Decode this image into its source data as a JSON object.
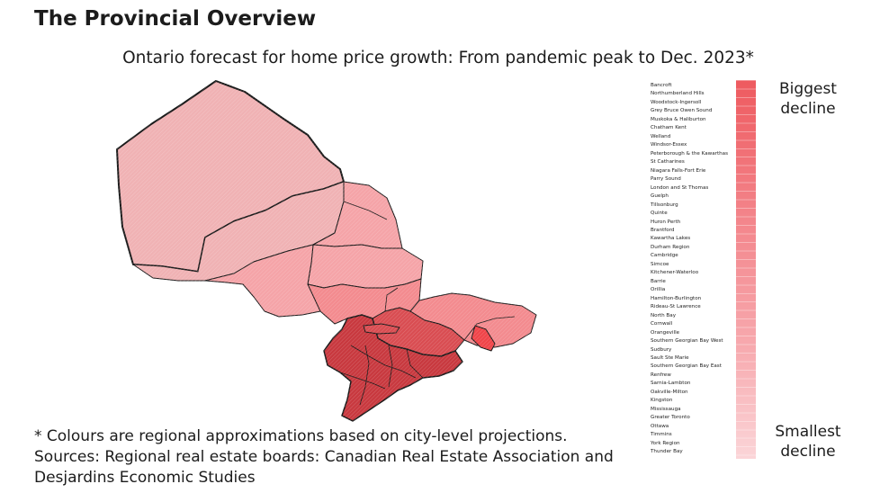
{
  "header": {
    "title": "The Provincial Overview",
    "subtitle": "Ontario forecast for home price growth: From pandemic peak to Dec. 2023*"
  },
  "legend": {
    "top_label": "Biggest decline",
    "bottom_label": "Smallest decline",
    "color_high": "#ee5a5f",
    "color_low": "#fbd5d8",
    "regions": [
      "Bancroft",
      "Northumberland Hills",
      "Woodstock-Ingersoll",
      "Grey Bruce Owen Sound",
      "Muskoka & Haliburton",
      "Chatham Kent",
      "Welland",
      "Windsor-Essex",
      "Peterborough & the Kawarthas",
      "St Catharines",
      "Niagara Falls-Fort Erie",
      "Parry Sound",
      "London and St Thomas",
      "Guelph",
      "Tillsonburg",
      "Quinte",
      "Huron Perth",
      "Brantford",
      "Kawartha Lakes",
      "Durham Region",
      "Cambridge",
      "Simcoe",
      "Kitchener-Waterloo",
      "Barrie",
      "Orillia",
      "Hamilton-Burlington",
      "Rideau-St Lawrence",
      "North Bay",
      "Cornwall",
      "Orangeville",
      "Southern Georgian Bay West",
      "Sudbury",
      "Sault Ste Marie",
      "Southern Georgian Bay East",
      "Renfrew",
      "Sarnia-Lambton",
      "Oakville-Milton",
      "Kingston",
      "Mississauga",
      "Greater Toronto",
      "Ottawa",
      "Timmins",
      "York Region",
      "Thunder Bay"
    ]
  },
  "map": {
    "region": "Ontario",
    "outline_color": "#1a1a1a",
    "north_fill": "#f0b2b4",
    "central_fill": "#f5a4a8",
    "mid_fill": "#f38b8f",
    "south_fill": "#d94d52",
    "dark_fill": "#c8393f",
    "hotspot_fill": "#f0454a"
  },
  "notes": {
    "footnote": "* Colours are regional approximations based on city-level projections.",
    "sources": "Sources: Regional real estate boards: Canadian Real Estate Association and Desjardins Economic Studies"
  }
}
